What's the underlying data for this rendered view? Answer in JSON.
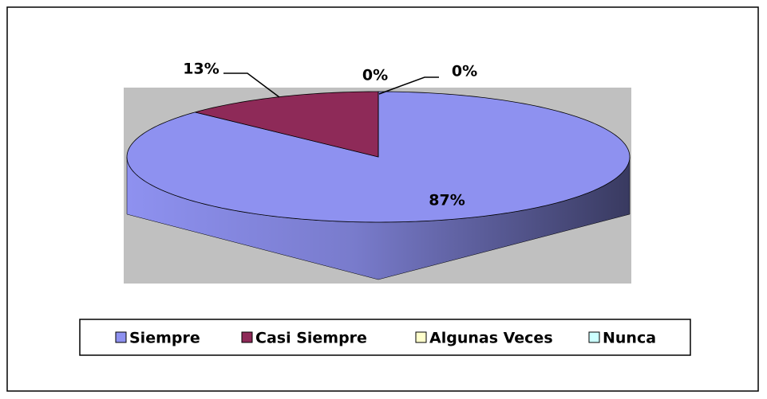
{
  "chart_data": {
    "type": "pie3d",
    "categories": [
      "Siempre",
      "Casi Siempre",
      "Algunas Veces",
      "Nunca"
    ],
    "values": [
      87,
      13,
      0,
      0
    ],
    "value_labels": [
      "87%",
      "13%",
      "0%",
      "0%"
    ],
    "colors": [
      "#8e91f0",
      "#8e2a58",
      "#ffffcc",
      "#ccffff"
    ],
    "legend": "bottom"
  }
}
